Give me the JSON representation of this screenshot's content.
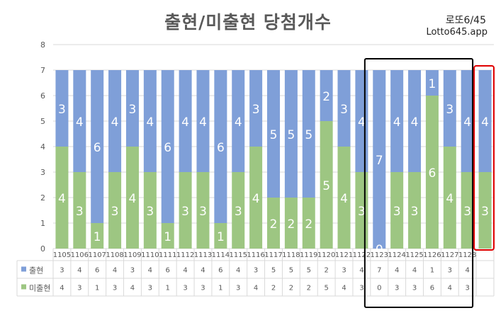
{
  "header": {
    "title": "출현/미출현 당첨개수",
    "brand_name": "로또6/45",
    "brand_url": "Lotto645.app"
  },
  "colors": {
    "appeared": "#7f9fd8",
    "not_appeared": "#9dc682",
    "grid": "#d9d9d9",
    "axis_text": "#595959",
    "black_box": "#000000",
    "red_box": "#e00000"
  },
  "chart_data": {
    "type": "bar",
    "stacked": true,
    "title": "출현/미출현 당첨개수",
    "categories": [
      "1105",
      "1106",
      "1107",
      "1108",
      "1109",
      "1110",
      "1111",
      "1112",
      "1113",
      "1114",
      "1115",
      "1116",
      "1117",
      "1118",
      "1119",
      "1120",
      "1121",
      "1122",
      "1123",
      "1124",
      "1125",
      "1126",
      "1127",
      "1128",
      ""
    ],
    "series": [
      {
        "name": "미출현",
        "values": [
          4,
          3,
          1,
          3,
          4,
          3,
          1,
          3,
          3,
          1,
          3,
          4,
          2,
          2,
          2,
          5,
          4,
          3,
          0,
          3,
          3,
          6,
          4,
          3,
          3
        ]
      },
      {
        "name": "출현",
        "values": [
          3,
          4,
          6,
          4,
          3,
          4,
          6,
          4,
          4,
          6,
          4,
          3,
          5,
          5,
          5,
          2,
          3,
          4,
          7,
          4,
          4,
          1,
          3,
          4,
          4
        ]
      }
    ],
    "table": {
      "rows": [
        {
          "label": "출현",
          "values": [
            "3",
            "4",
            "6",
            "4",
            "3",
            "4",
            "6",
            "4",
            "4",
            "6",
            "4",
            "3",
            "5",
            "5",
            "5",
            "2",
            "3",
            "4",
            "7",
            "4",
            "4",
            "1",
            "3",
            "4",
            ""
          ]
        },
        {
          "label": "미출현",
          "values": [
            "4",
            "3",
            "1",
            "3",
            "4",
            "3",
            "1",
            "3",
            "3",
            "1",
            "3",
            "4",
            "2",
            "2",
            "2",
            "5",
            "4",
            "3",
            "0",
            "3",
            "3",
            "6",
            "4",
            "3",
            ""
          ]
        }
      ]
    },
    "yticks": [
      "0",
      "1",
      "2",
      "3",
      "4",
      "5",
      "6",
      "7",
      "8"
    ],
    "ylim": [
      0,
      8
    ],
    "grid": true,
    "legend": "data-table"
  }
}
